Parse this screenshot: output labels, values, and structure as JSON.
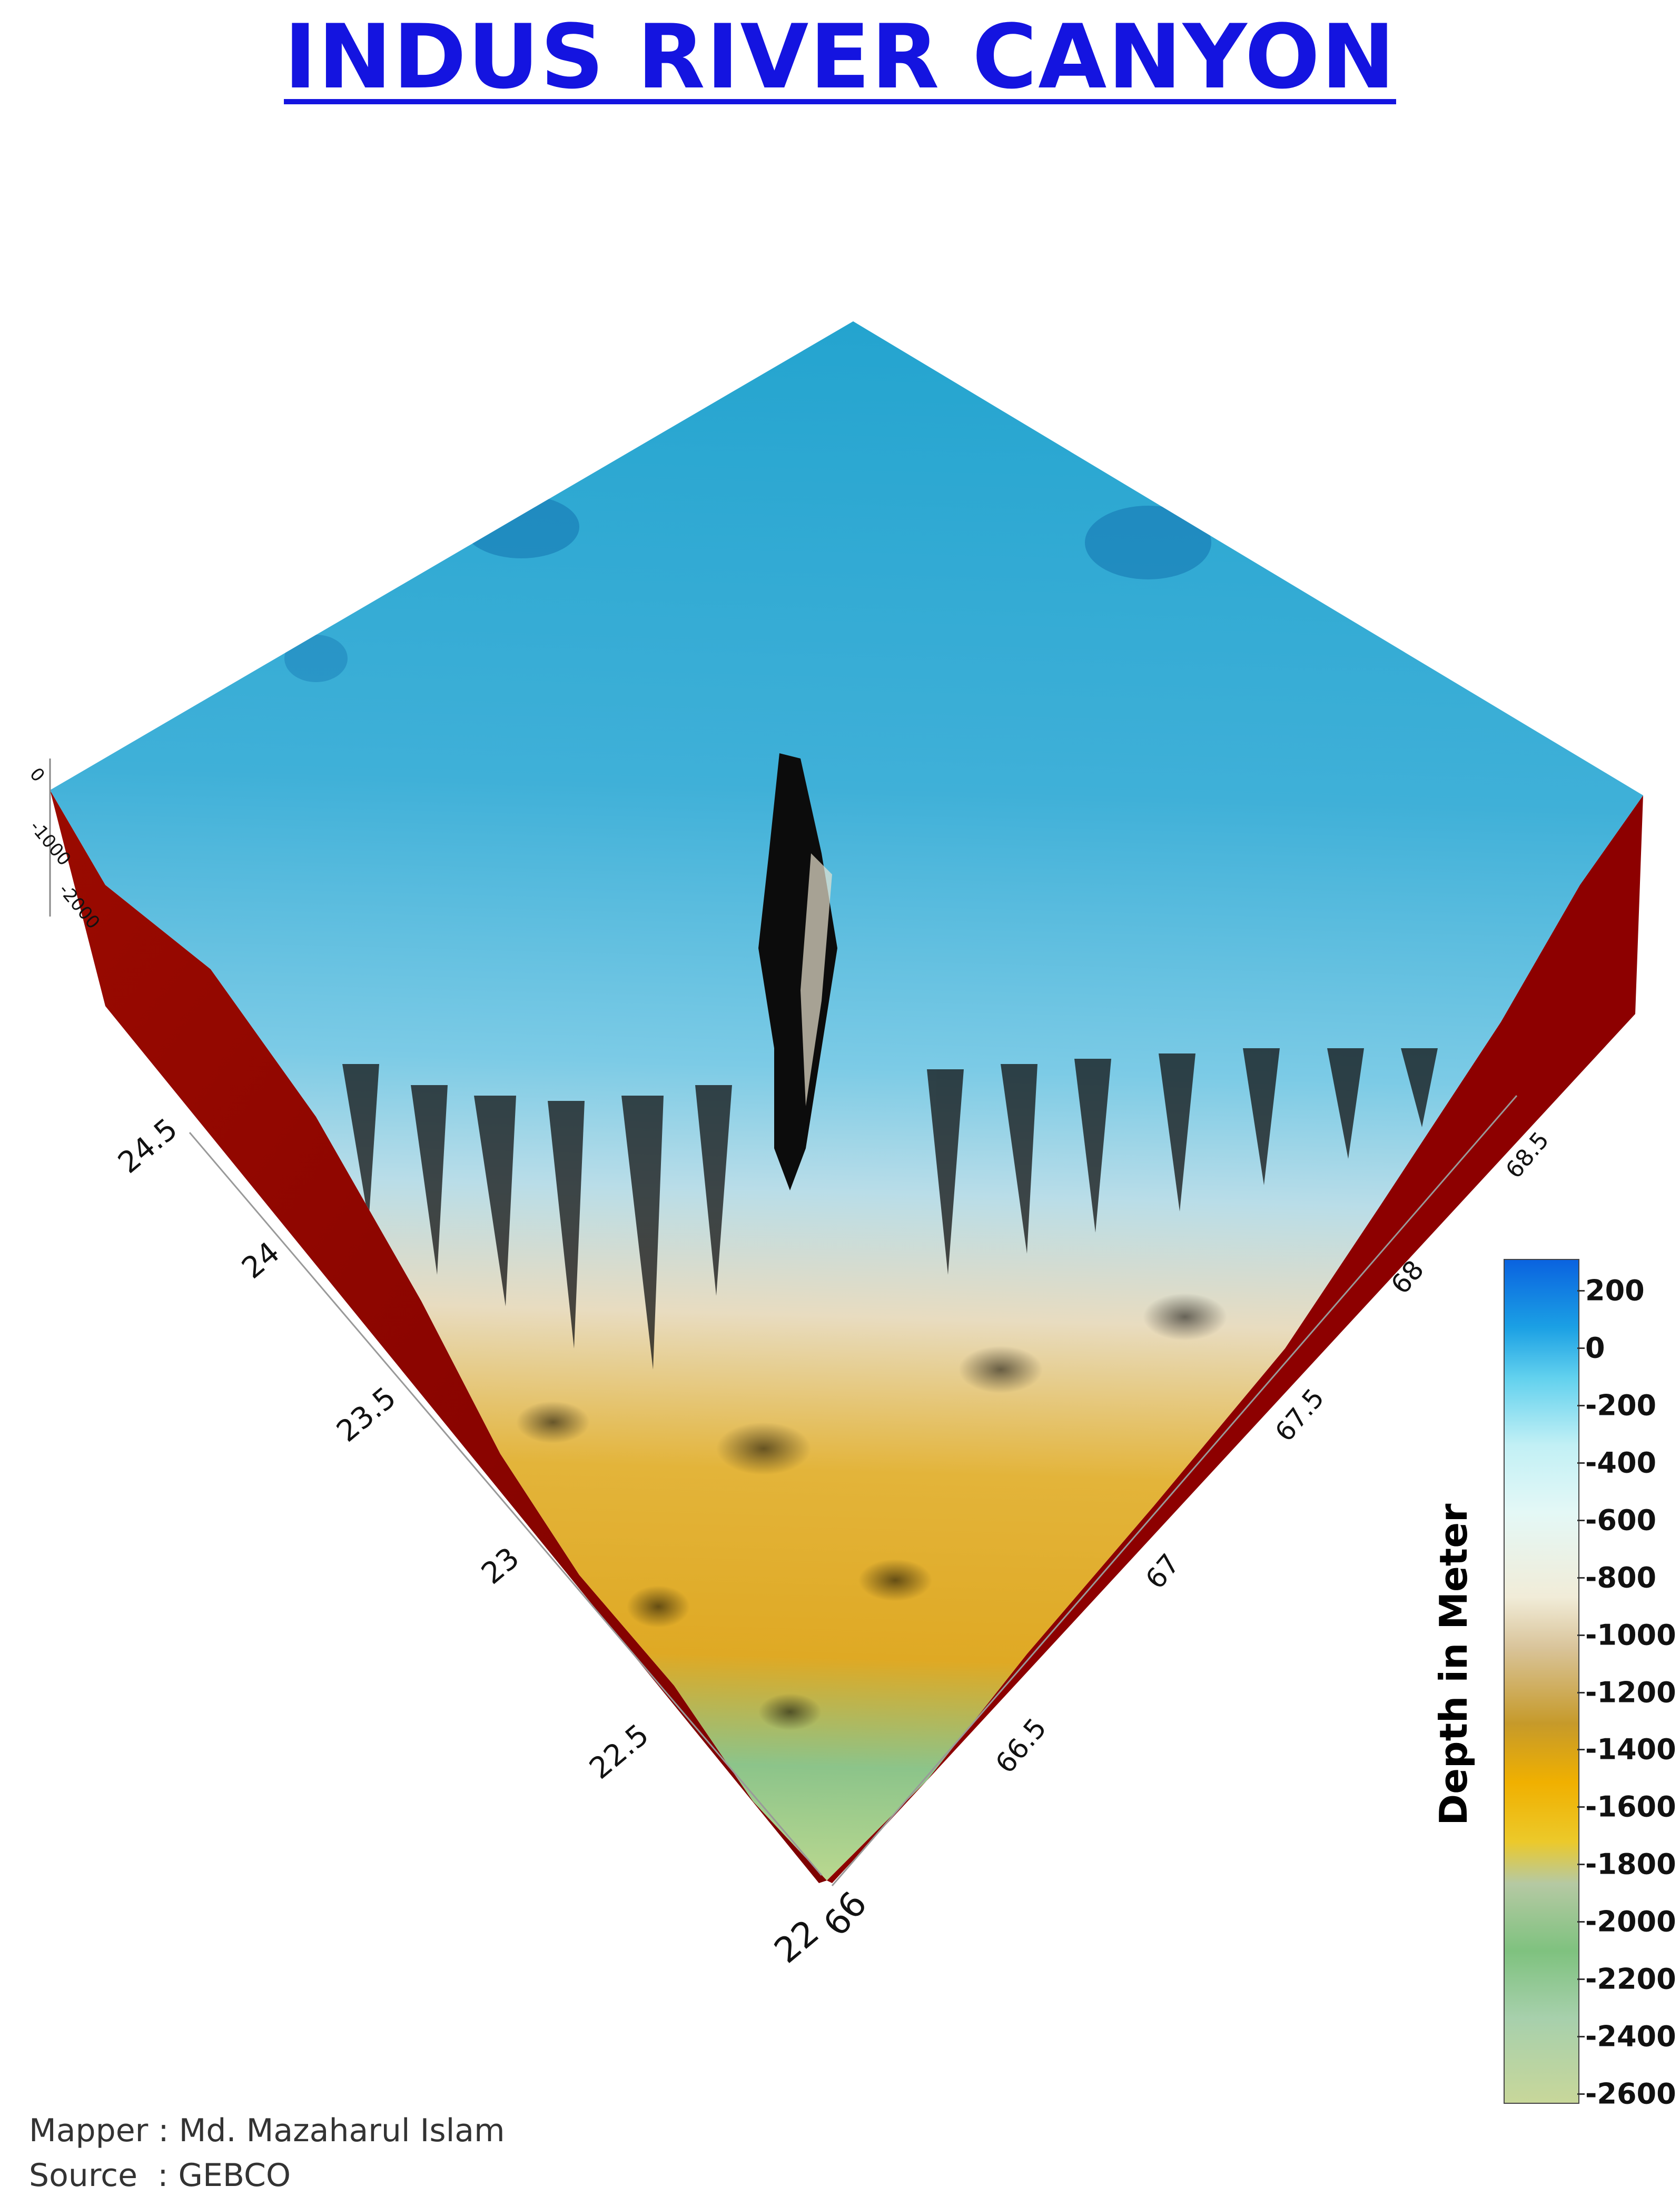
{
  "title": "INDUS RIVER CANYON",
  "legend": {
    "title": "Depth in Meter",
    "ticks": [
      "200",
      "0",
      "-200",
      "-400",
      "-600",
      "-800",
      "-1000",
      "-1200",
      "-1400",
      "-1600",
      "-1800",
      "-2000",
      "-2200",
      "-2400",
      "-2600"
    ]
  },
  "axes": {
    "latitude": [
      "24.5",
      "24",
      "23.5",
      "23",
      "22.5",
      "22"
    ],
    "longitude": [
      "66",
      "66.5",
      "67",
      "67.5",
      "68",
      "68.5"
    ],
    "depth": [
      "0",
      "-1000",
      "-2000"
    ]
  },
  "credits": {
    "mapper": "Mapper : Md. Mazaharul Islam",
    "source": "Source  : GEBCO"
  },
  "colors": {
    "title": "#1414e0",
    "side_walls": "#8b0000",
    "shallow": "#2a95c8",
    "shelf": "#6cc5e0",
    "slope": "#e8dcc0",
    "mid": "#e0b020",
    "deep": "#7fc27f"
  }
}
